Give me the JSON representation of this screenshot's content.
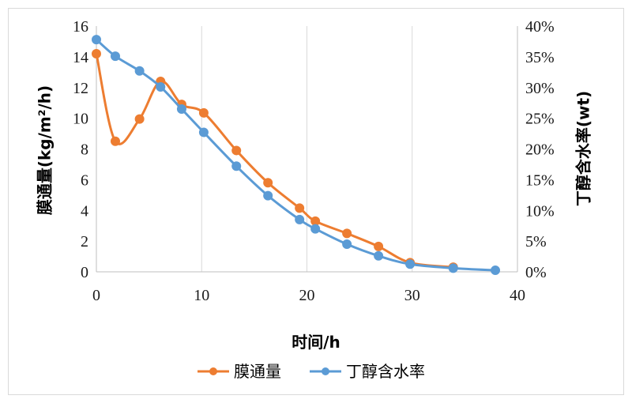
{
  "chart_data": {
    "type": "line",
    "x_axis": {
      "label": "时间/h",
      "min": 0,
      "max": 40,
      "step": 10,
      "tick_labels": [
        "0",
        "10",
        "20",
        "30",
        "40"
      ]
    },
    "y_axis_left": {
      "label": "膜通量(kg/m²/h)",
      "min": 0,
      "max": 16,
      "step": 2,
      "tick_labels": [
        "0",
        "2",
        "4",
        "6",
        "8",
        "10",
        "12",
        "14",
        "16"
      ]
    },
    "y_axis_right": {
      "label": "丁醇含水率(wt)",
      "min": 0,
      "max": 40,
      "step": 5,
      "tick_labels": [
        "0%",
        "5%",
        "10%",
        "15%",
        "20%",
        "25%",
        "30%",
        "35%",
        "40%"
      ]
    },
    "grid": "vertical",
    "legend_position": "bottom",
    "series": [
      {
        "name": "膜通量",
        "axis": "left",
        "color": "#ED7D31",
        "smooth": true,
        "points": [
          [
            0,
            14.2
          ],
          [
            1.8,
            8.5
          ],
          [
            4.1,
            9.95
          ],
          [
            6.1,
            12.4
          ],
          [
            8.1,
            10.9
          ],
          [
            10.2,
            10.35
          ],
          [
            13.3,
            7.9
          ],
          [
            16.3,
            5.8
          ],
          [
            19.3,
            4.15
          ],
          [
            20.8,
            3.3
          ],
          [
            23.8,
            2.5
          ],
          [
            26.8,
            1.65
          ],
          [
            29.8,
            0.6
          ],
          [
            33.9,
            0.3
          ]
        ]
      },
      {
        "name": "丁醇含水率",
        "axis": "right",
        "color": "#5B9BD5",
        "smooth": true,
        "points": [
          [
            0,
            37.8
          ],
          [
            1.8,
            35.1
          ],
          [
            4.1,
            32.7
          ],
          [
            6.1,
            30.1
          ],
          [
            8.1,
            26.5
          ],
          [
            10.2,
            22.7
          ],
          [
            13.3,
            17.2
          ],
          [
            16.3,
            12.4
          ],
          [
            19.3,
            8.5
          ],
          [
            20.8,
            7.0
          ],
          [
            23.8,
            4.5
          ],
          [
            26.8,
            2.6
          ],
          [
            29.8,
            1.25
          ],
          [
            33.9,
            0.6
          ],
          [
            37.9,
            0.25
          ]
        ]
      }
    ]
  }
}
